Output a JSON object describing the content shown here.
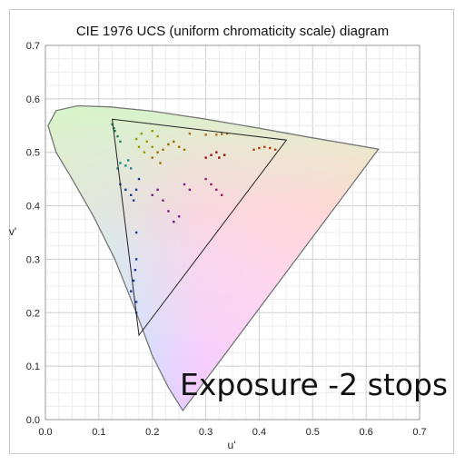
{
  "chart_data": {
    "type": "scatter",
    "title": "CIE 1976 UCS (uniform chromaticity scale) diagram",
    "xlabel": "u'",
    "ylabel": "v'",
    "xlim": [
      0.0,
      0.7
    ],
    "ylim": [
      0.0,
      0.7
    ],
    "xticks": [
      "0.0",
      "0.1",
      "0.2",
      "0.3",
      "0.4",
      "0.5",
      "0.6",
      "0.7"
    ],
    "yticks": [
      "0.0",
      "0.1",
      "0.2",
      "0.3",
      "0.4",
      "0.5",
      "0.6",
      "0.7"
    ],
    "grid": true,
    "annotation": "Exposure  -2 stops",
    "spectral_locus": [
      [
        0.257,
        0.017
      ],
      [
        0.23,
        0.06
      ],
      [
        0.2,
        0.12
      ],
      [
        0.17,
        0.2
      ],
      [
        0.13,
        0.3
      ],
      [
        0.09,
        0.38
      ],
      [
        0.05,
        0.45
      ],
      [
        0.02,
        0.5
      ],
      [
        0.005,
        0.55
      ],
      [
        0.02,
        0.578
      ],
      [
        0.06,
        0.587
      ],
      [
        0.12,
        0.585
      ],
      [
        0.2,
        0.577
      ],
      [
        0.3,
        0.562
      ],
      [
        0.4,
        0.545
      ],
      [
        0.5,
        0.527
      ],
      [
        0.6,
        0.51
      ],
      [
        0.623,
        0.506
      ]
    ],
    "gamut_triangle": [
      [
        0.125,
        0.562
      ],
      [
        0.451,
        0.523
      ],
      [
        0.175,
        0.158
      ]
    ],
    "series": [
      {
        "color": "#1a7f5a",
        "points": [
          [
            0.125,
            0.552
          ],
          [
            0.13,
            0.54
          ],
          [
            0.135,
            0.53
          ],
          [
            0.128,
            0.545
          ],
          [
            0.14,
            0.52
          ]
        ]
      },
      {
        "color": "#9a9a00",
        "points": [
          [
            0.17,
            0.525
          ],
          [
            0.18,
            0.535
          ],
          [
            0.19,
            0.52
          ],
          [
            0.175,
            0.51
          ],
          [
            0.2,
            0.54
          ],
          [
            0.21,
            0.53
          ],
          [
            0.185,
            0.5
          ],
          [
            0.2,
            0.51
          ]
        ]
      },
      {
        "color": "#a06a00",
        "points": [
          [
            0.21,
            0.5
          ],
          [
            0.22,
            0.505
          ],
          [
            0.23,
            0.515
          ],
          [
            0.24,
            0.52
          ],
          [
            0.25,
            0.51
          ],
          [
            0.26,
            0.505
          ],
          [
            0.2,
            0.49
          ],
          [
            0.215,
            0.48
          ]
        ]
      },
      {
        "color": "#b06a1a",
        "points": [
          [
            0.27,
            0.535
          ],
          [
            0.3,
            0.533
          ],
          [
            0.32,
            0.533
          ],
          [
            0.33,
            0.534
          ],
          [
            0.34,
            0.535
          ]
        ]
      },
      {
        "color": "#b04010",
        "points": [
          [
            0.39,
            0.505
          ],
          [
            0.4,
            0.508
          ],
          [
            0.41,
            0.51
          ],
          [
            0.42,
            0.508
          ],
          [
            0.43,
            0.505
          ]
        ]
      },
      {
        "color": "#9a1010",
        "points": [
          [
            0.3,
            0.49
          ],
          [
            0.31,
            0.495
          ],
          [
            0.32,
            0.5
          ],
          [
            0.325,
            0.49
          ],
          [
            0.335,
            0.495
          ]
        ]
      },
      {
        "color": "#1a8a90",
        "points": [
          [
            0.14,
            0.48
          ],
          [
            0.15,
            0.475
          ],
          [
            0.155,
            0.485
          ],
          [
            0.16,
            0.47
          ],
          [
            0.135,
            0.47
          ]
        ]
      },
      {
        "color": "#1a3a9a",
        "points": [
          [
            0.14,
            0.44
          ],
          [
            0.15,
            0.43
          ],
          [
            0.16,
            0.42
          ],
          [
            0.165,
            0.41
          ],
          [
            0.17,
            0.43
          ],
          [
            0.175,
            0.45
          ],
          [
            0.17,
            0.35
          ],
          [
            0.17,
            0.3
          ],
          [
            0.168,
            0.28
          ],
          [
            0.165,
            0.26
          ],
          [
            0.17,
            0.22
          ],
          [
            0.17,
            0.2
          ],
          [
            0.16,
            0.24
          ]
        ]
      },
      {
        "color": "#7a1a8a",
        "points": [
          [
            0.2,
            0.42
          ],
          [
            0.21,
            0.43
          ],
          [
            0.22,
            0.41
          ],
          [
            0.23,
            0.39
          ],
          [
            0.24,
            0.37
          ],
          [
            0.25,
            0.38
          ],
          [
            0.26,
            0.44
          ],
          [
            0.27,
            0.43
          ]
        ]
      },
      {
        "color": "#9a1a6a",
        "points": [
          [
            0.3,
            0.45
          ],
          [
            0.31,
            0.44
          ],
          [
            0.32,
            0.43
          ],
          [
            0.33,
            0.42
          ]
        ]
      }
    ]
  }
}
